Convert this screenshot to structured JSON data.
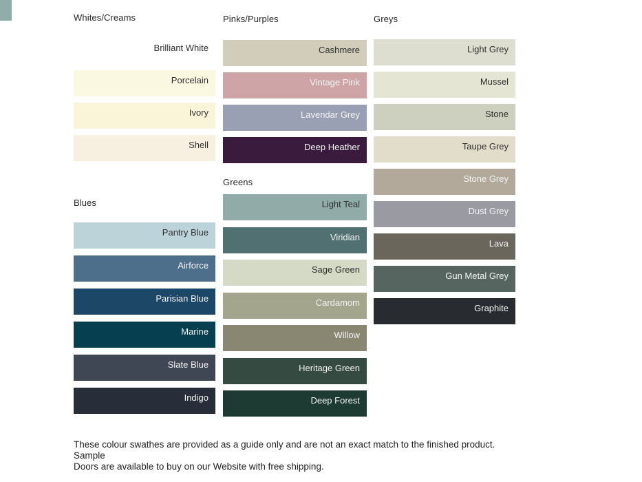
{
  "theme": {
    "heading_color": "#262626",
    "label_dark": "#303030",
    "label_light": "#f4f4f4",
    "footer_color": "#222222"
  },
  "corner_fragment": {
    "color": "#8fada9"
  },
  "columns": [
    {
      "sections": [
        {
          "title": "Whites/Creams",
          "swatches": [
            {
              "name": "Brilliant White",
              "color": "#ffffff",
              "text": "dark"
            },
            {
              "name": "Porcelain",
              "color": "#fbf8e2",
              "text": "dark"
            },
            {
              "name": "Ivory",
              "color": "#faf5d8",
              "text": "dark"
            },
            {
              "name": "Shell",
              "color": "#f7efe0",
              "text": "dark"
            }
          ]
        },
        {
          "title": "Blues",
          "swatches": [
            {
              "name": "Pantry Blue",
              "color": "#bcd3da",
              "text": "dark"
            },
            {
              "name": "Airforce",
              "color": "#4e6f8b",
              "text": "light"
            },
            {
              "name": "Parisian Blue",
              "color": "#1c4766",
              "text": "light"
            },
            {
              "name": "Marine",
              "color": "#064050",
              "text": "light"
            },
            {
              "name": "Slate Blue",
              "color": "#404754",
              "text": "light"
            },
            {
              "name": "Indigo",
              "color": "#282e39",
              "text": "light"
            }
          ]
        }
      ]
    },
    {
      "sections": [
        {
          "title": "Pinks/Purples",
          "swatches": [
            {
              "name": "Cashmere",
              "color": "#d2ccbb",
              "text": "dark"
            },
            {
              "name": "Vintage Pink",
              "color": "#cfa4a7",
              "text": "light"
            },
            {
              "name": "Lavendar Grey",
              "color": "#99a0b3",
              "text": "light"
            },
            {
              "name": "Deep Heather",
              "color": "#3a1b3e",
              "text": "light"
            }
          ]
        },
        {
          "title": "Greens",
          "swatches": [
            {
              "name": "Light Teal",
              "color": "#90aba8",
              "text": "dark"
            },
            {
              "name": "Viridian",
              "color": "#507072",
              "text": "light"
            },
            {
              "name": "Sage Green",
              "color": "#d4dac6",
              "text": "dark"
            },
            {
              "name": "Cardamom",
              "color": "#a3a68c",
              "text": "light"
            },
            {
              "name": "Willow",
              "color": "#898672",
              "text": "light"
            },
            {
              "name": "Heritage Green",
              "color": "#354a40",
              "text": "light"
            },
            {
              "name": "Deep Forest",
              "color": "#1d3b33",
              "text": "light"
            }
          ]
        }
      ]
    },
    {
      "sections": [
        {
          "title": "Greys",
          "swatches": [
            {
              "name": "Light Grey",
              "color": "#dddecf",
              "text": "dark"
            },
            {
              "name": "Mussel",
              "color": "#e4e5d3",
              "text": "dark"
            },
            {
              "name": "Stone",
              "color": "#cdcfbf",
              "text": "dark"
            },
            {
              "name": "Taupe Grey",
              "color": "#e2dccb",
              "text": "dark"
            },
            {
              "name": "Stone Grey",
              "color": "#b2a99b",
              "text": "light"
            },
            {
              "name": "Dust Grey",
              "color": "#9a9ba2",
              "text": "light"
            },
            {
              "name": "Lava",
              "color": "#6a665b",
              "text": "light"
            },
            {
              "name": "Gun Metal Grey",
              "color": "#566560",
              "text": "light"
            },
            {
              "name": "Graphite",
              "color": "#282c31",
              "text": "light"
            }
          ]
        }
      ]
    }
  ],
  "footer": {
    "lines": [
      "These colour swathes are provided as a guide only and are not an exact match to the finished product.  Sample",
      "Doors are available to buy on our Website with free shipping."
    ]
  }
}
